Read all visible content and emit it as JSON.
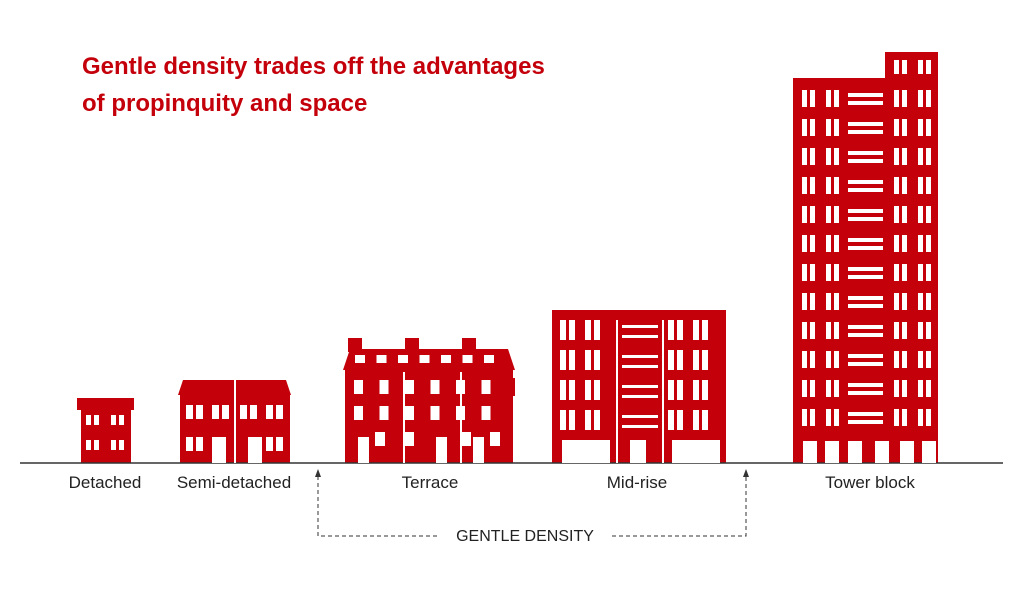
{
  "header": {
    "title_lines": [
      "Gentle density trades off the advantages",
      "of propinquity and space"
    ]
  },
  "buildings": [
    {
      "label": "Detached"
    },
    {
      "label": "Semi-detached"
    },
    {
      "label": "Terrace"
    },
    {
      "label": "Mid-rise"
    },
    {
      "label": "Tower block"
    }
  ],
  "range_label": "GENTLE DENSITY"
}
